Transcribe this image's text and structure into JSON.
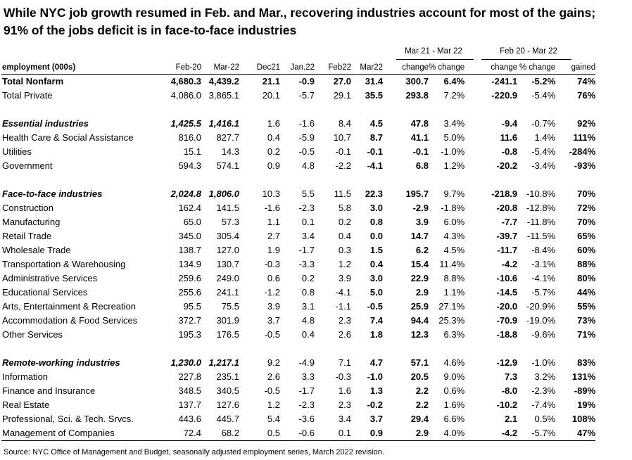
{
  "title": {
    "line1": "While NYC job growth resumed in Feb. and Mar., recovering industries account for most of the gains;",
    "line2": "91% of the jobs deficit is in face-to-face industries"
  },
  "group_headers": {
    "mar21_mar22": "Mar 21 - Mar 22",
    "feb20_mar22": "Feb 20 - Mar 22"
  },
  "columns": [
    "employment (000s)",
    "Feb-20",
    "Mar-22",
    "Dec21",
    "Jan.22",
    "Feb22",
    "Mar22",
    "change",
    "% change",
    "change",
    "% change",
    "gained"
  ],
  "sections": [
    {
      "rows": [
        {
          "label": "Total Nonfarm",
          "style": "bold",
          "values": [
            "4,680.3",
            "4,439.2",
            "21.1",
            "-0.9",
            "27.0",
            "31.4",
            "300.7",
            "6.4%",
            "-241.1",
            "-5.2%",
            "74%"
          ]
        },
        {
          "label": "Total Private",
          "style": "normal",
          "values": [
            "4,086.0",
            "3,865.1",
            "20.1",
            "-5.7",
            "29.1",
            "35.5",
            "293.8",
            "7.2%",
            "-220.9",
            "-5.4%",
            "76%"
          ]
        }
      ]
    },
    {
      "rows": [
        {
          "label": "Essential industries",
          "style": "heading",
          "values": [
            "1,425.5",
            "1,416.1",
            "1.6",
            "-1.6",
            "8.4",
            "4.5",
            "47.8",
            "3.4%",
            "-9.4",
            "-0.7%",
            "92%"
          ]
        },
        {
          "label": "Health Care & Social Assistance",
          "style": "normal",
          "values": [
            "816.0",
            "827.7",
            "0.4",
            "-5.9",
            "10.7",
            "8.7",
            "41.1",
            "5.0%",
            "11.6",
            "1.4%",
            "111%"
          ]
        },
        {
          "label": "Utilities",
          "style": "normal",
          "values": [
            "15.1",
            "14.3",
            "0.2",
            "-0.5",
            "-0.1",
            "-0.1",
            "-0.1",
            "-1.0%",
            "-0.8",
            "-5.4%",
            "-284%"
          ]
        },
        {
          "label": "Government",
          "style": "normal",
          "values": [
            "594.3",
            "574.1",
            "0.9",
            "4.8",
            "-2.2",
            "-4.1",
            "6.8",
            "1.2%",
            "-20.2",
            "-3.4%",
            "-93%"
          ]
        }
      ]
    },
    {
      "rows": [
        {
          "label": "Face-to-face industries",
          "style": "heading",
          "values": [
            "2,024.8",
            "1,806.0",
            "10.3",
            "5.5",
            "11.5",
            "22.3",
            "195.7",
            "9.7%",
            "-218.9",
            "-10.8%",
            "70%"
          ]
        },
        {
          "label": "Construction",
          "style": "normal",
          "values": [
            "162.4",
            "141.5",
            "-1.6",
            "-2.3",
            "5.8",
            "3.0",
            "-2.9",
            "-1.8%",
            "-20.8",
            "-12.8%",
            "72%"
          ]
        },
        {
          "label": "Manufacturing",
          "style": "normal",
          "values": [
            "65.0",
            "57.3",
            "1.1",
            "0.1",
            "0.2",
            "0.8",
            "3.9",
            "6.0%",
            "-7.7",
            "-11.8%",
            "70%"
          ]
        },
        {
          "label": "Retail Trade",
          "style": "normal",
          "values": [
            "345.0",
            "305.4",
            "2.7",
            "3.4",
            "0.4",
            "0.0",
            "14.7",
            "4.3%",
            "-39.7",
            "-11.5%",
            "65%"
          ]
        },
        {
          "label": "Wholesale Trade",
          "style": "normal",
          "values": [
            "138.7",
            "127.0",
            "1.9",
            "-1.7",
            "0.3",
            "1.5",
            "6.2",
            "4.5%",
            "-11.7",
            "-8.4%",
            "60%"
          ]
        },
        {
          "label": "Transportation & Warehousing",
          "style": "normal",
          "values": [
            "134.9",
            "130.7",
            "-0.3",
            "-3.3",
            "1.2",
            "0.4",
            "15.4",
            "11.4%",
            "-4.2",
            "-3.1%",
            "88%"
          ]
        },
        {
          "label": "Administrative Services",
          "style": "normal",
          "values": [
            "259.6",
            "249.0",
            "0.6",
            "0.2",
            "3.9",
            "3.0",
            "22.9",
            "8.8%",
            "-10.6",
            "-4.1%",
            "80%"
          ]
        },
        {
          "label": "Educational Services",
          "style": "normal",
          "values": [
            "255.6",
            "241.1",
            "-1.2",
            "0.8",
            "-4.1",
            "5.0",
            "2.9",
            "1.1%",
            "-14.5",
            "-5.7%",
            "44%"
          ]
        },
        {
          "label": "Arts, Entertainment & Recreation",
          "style": "normal",
          "values": [
            "95.5",
            "75.5",
            "3.9",
            "3.1",
            "-1.1",
            "-0.5",
            "25.9",
            "27.1%",
            "-20.0",
            "-20.9%",
            "55%"
          ]
        },
        {
          "label": "Accommodation & Food Services",
          "style": "normal",
          "values": [
            "372.7",
            "301.9",
            "3.7",
            "4.8",
            "2.3",
            "7.4",
            "94.4",
            "25.3%",
            "-70.9",
            "-19.0%",
            "73%"
          ]
        },
        {
          "label": "Other Services",
          "style": "normal",
          "values": [
            "195.3",
            "176.5",
            "-0.5",
            "0.4",
            "2.6",
            "1.8",
            "12.3",
            "6.3%",
            "-18.8",
            "-9.6%",
            "71%"
          ]
        }
      ]
    },
    {
      "rows": [
        {
          "label": "Remote-working industries",
          "style": "heading",
          "values": [
            "1,230.0",
            "1,217.1",
            "9.2",
            "-4.9",
            "7.1",
            "4.7",
            "57.1",
            "4.6%",
            "-12.9",
            "-1.0%",
            "83%"
          ]
        },
        {
          "label": "Information",
          "style": "normal",
          "values": [
            "227.8",
            "235.1",
            "2.6",
            "3.3",
            "-0.3",
            "-1.0",
            "20.5",
            "9.0%",
            "7.3",
            "3.2%",
            "131%"
          ]
        },
        {
          "label": "Finance and Insurance",
          "style": "normal",
          "values": [
            "348.5",
            "340.5",
            "-0.5",
            "-1.7",
            "1.6",
            "1.3",
            "2.2",
            "0.6%",
            "-8.0",
            "-2.3%",
            "-89%"
          ]
        },
        {
          "label": "Real Estate",
          "style": "normal",
          "values": [
            "137.7",
            "127.6",
            "1.2",
            "-2.3",
            "2.3",
            "-0.2",
            "2.2",
            "1.6%",
            "-10.2",
            "-7.4%",
            "19%"
          ]
        },
        {
          "label": "Professional, Sci. & Tech. Srvcs.",
          "style": "normal",
          "values": [
            "443.6",
            "445.7",
            "5.4",
            "-3.6",
            "3.4",
            "3.7",
            "29.4",
            "6.6%",
            "2.1",
            "0.5%",
            "108%"
          ]
        },
        {
          "label": "Management of Companies",
          "style": "normal",
          "values": [
            "72.4",
            "68.2",
            "0.5",
            "-0.6",
            "0.1",
            "0.9",
            "2.9",
            "4.0%",
            "-4.2",
            "-5.7%",
            "47%"
          ]
        }
      ]
    }
  ],
  "source": "Source: NYC Office of Management and Budget, seasonally adjusted employment series, March 2022 revision."
}
